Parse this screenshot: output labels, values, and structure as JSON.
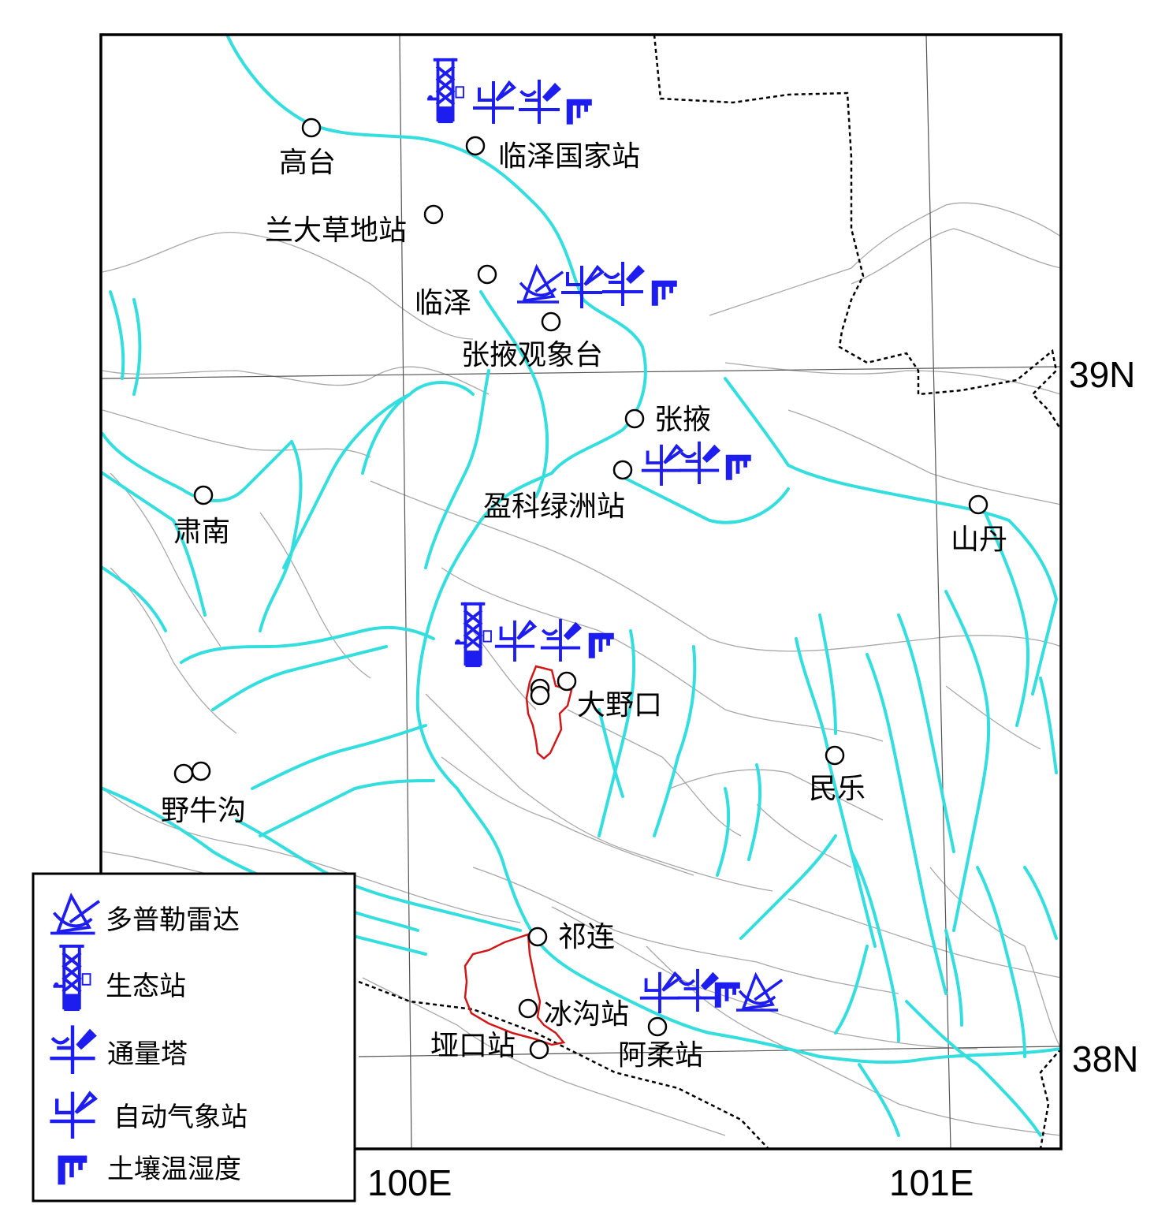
{
  "axes": {
    "lon_labels": [
      "100E",
      "101E"
    ],
    "lat_labels": [
      "39N",
      "38N"
    ]
  },
  "stations": [
    {
      "id": "gaotai",
      "name": "高台"
    },
    {
      "id": "linze_national",
      "name": "临泽国家站"
    },
    {
      "id": "landa_grass",
      "name": "兰大草地站"
    },
    {
      "id": "linze",
      "name": "临泽"
    },
    {
      "id": "zhangye_obs",
      "name": "张掖观象台"
    },
    {
      "id": "zhangye",
      "name": "张掖"
    },
    {
      "id": "yingke",
      "name": "盈科绿洲站"
    },
    {
      "id": "shandan",
      "name": "山丹"
    },
    {
      "id": "sunan",
      "name": "肃南"
    },
    {
      "id": "dayekou",
      "name": "大野口"
    },
    {
      "id": "minle",
      "name": "民乐"
    },
    {
      "id": "yeniugou",
      "name": "野牛沟"
    },
    {
      "id": "qilian",
      "name": "祁连"
    },
    {
      "id": "binggou",
      "name": "冰沟站"
    },
    {
      "id": "yakou",
      "name": "垭口站"
    },
    {
      "id": "arou",
      "name": "阿柔站"
    }
  ],
  "legend": {
    "items": [
      {
        "icon": "doppler-radar-icon",
        "label": "多普勒雷达"
      },
      {
        "icon": "eco-station-icon",
        "label": "生态站"
      },
      {
        "icon": "flux-tower-icon",
        "label": "通量塔"
      },
      {
        "icon": "weather-station-icon",
        "label": "自动气象站"
      },
      {
        "icon": "soil-moisture-icon",
        "label": "土壤温湿度"
      }
    ]
  },
  "colors": {
    "river": "#35dede",
    "contour": "#a8a8a8",
    "basin": "#d01818",
    "instrument": "#1d1df0",
    "border": "#000000"
  }
}
